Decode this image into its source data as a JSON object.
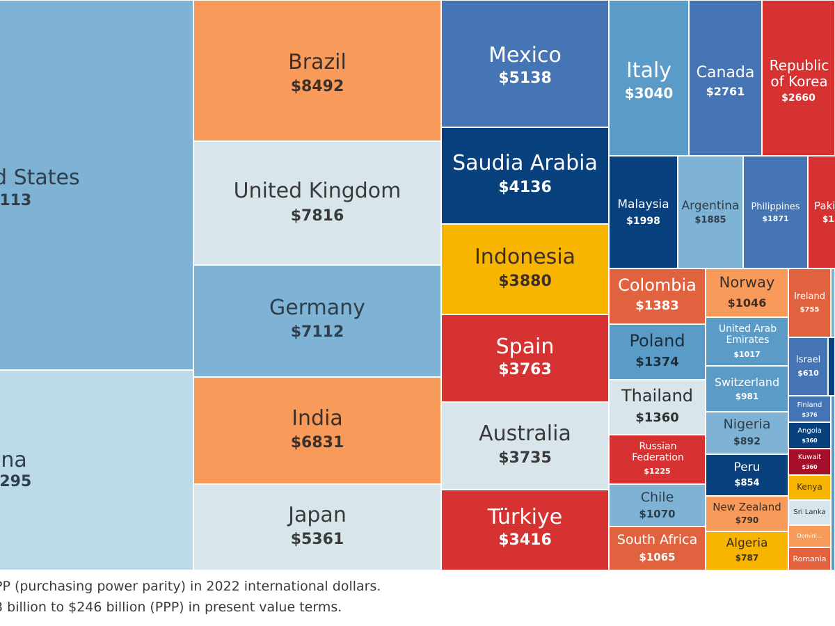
{
  "chart_data": {
    "type": "treemap",
    "unit": "$",
    "items": [
      {
        "name": "d States",
        "value_label": ",113"
      },
      {
        "name": "ina",
        "value_label": ",295"
      },
      {
        "name": "Brazil",
        "value": 8492,
        "value_label": "$8492"
      },
      {
        "name": "United Kingdom",
        "value": 7816,
        "value_label": "$7816"
      },
      {
        "name": "Germany",
        "value": 7112,
        "value_label": "$7112"
      },
      {
        "name": "India",
        "value": 6831,
        "value_label": "$6831"
      },
      {
        "name": "Japan",
        "value": 5361,
        "value_label": "$5361"
      },
      {
        "name": "Mexico",
        "value": 5138,
        "value_label": "$5138"
      },
      {
        "name": "Saudia Arabia",
        "value": 4136,
        "value_label": "$4136"
      },
      {
        "name": "Indonesia",
        "value": 3880,
        "value_label": "$3880"
      },
      {
        "name": "Spain",
        "value": 3763,
        "value_label": "$3763"
      },
      {
        "name": "Australia",
        "value": 3735,
        "value_label": "$3735"
      },
      {
        "name": "Türkiye",
        "value": 3416,
        "value_label": "$3416"
      },
      {
        "name": "Italy",
        "value": 3040,
        "value_label": "$3040"
      },
      {
        "name": "Canada",
        "value": 2761,
        "value_label": "$2761"
      },
      {
        "name": "Republic of Korea",
        "value": 2660,
        "value_label": "$2660"
      },
      {
        "name": "Malaysia",
        "value": 1998,
        "value_label": "$1998"
      },
      {
        "name": "Argentina",
        "value": 1885,
        "value_label": "$1885"
      },
      {
        "name": "Philippines",
        "value": 1871,
        "value_label": "$1871"
      },
      {
        "name": "Paki",
        "value_label": "$15"
      },
      {
        "name": "Colombia",
        "value": 1383,
        "value_label": "$1383"
      },
      {
        "name": "Poland",
        "value": 1374,
        "value_label": "$1374"
      },
      {
        "name": "Thailand",
        "value": 1360,
        "value_label": "$1360"
      },
      {
        "name": "Russian Federation",
        "value": 1225,
        "value_label": "$1225"
      },
      {
        "name": "Chile",
        "value": 1070,
        "value_label": "$1070"
      },
      {
        "name": "South Africa",
        "value": 1065,
        "value_label": "$1065"
      },
      {
        "name": "Norway",
        "value": 1046,
        "value_label": "$1046"
      },
      {
        "name": "United Arab Emirates",
        "value": 1017,
        "value_label": "$1017"
      },
      {
        "name": "Switzerland",
        "value": 981,
        "value_label": "$981"
      },
      {
        "name": "Nigeria",
        "value": 892,
        "value_label": "$892"
      },
      {
        "name": "Peru",
        "value": 854,
        "value_label": "$854"
      },
      {
        "name": "New Zealand",
        "value": 790,
        "value_label": "$790"
      },
      {
        "name": "Algeria",
        "value": 787,
        "value_label": "$787"
      },
      {
        "name": "Ireland",
        "value": 755,
        "value_label": "$755"
      },
      {
        "name": "Israel",
        "value": 610,
        "value_label": "$610"
      },
      {
        "name": "Finland",
        "value": 376,
        "value_label": "$376"
      },
      {
        "name": "Angola",
        "value": 360,
        "value_label": "$360"
      },
      {
        "name": "Kuwait",
        "value": 360,
        "value_label": "$360"
      },
      {
        "name": "Kenya"
      },
      {
        "name": "Sri Lanka"
      },
      {
        "name": "Domini..."
      },
      {
        "name": "Romania"
      },
      {
        "name": ""
      },
      {
        "name": ""
      },
      {
        "name": ""
      }
    ]
  },
  "footnotes": [
    "PP (purchasing power parity) in 2022 international dollars.",
    "3 billion to $246 billion (PPP) in present value terms."
  ],
  "colors": {
    "light_blue": "#7fb3d5",
    "pale_blue": "#bcdae8",
    "very_pale": "#d8e6eb",
    "orange": "#f79a5a",
    "mid_blue": "#4575b4",
    "navy": "#08417d",
    "gold": "#f7b500",
    "red": "#d73232",
    "coral": "#e0623f",
    "steel_blue": "#5b9bc8",
    "dark_red": "#a50f2a"
  }
}
